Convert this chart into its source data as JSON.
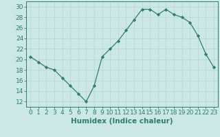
{
  "x": [
    0,
    1,
    2,
    3,
    4,
    5,
    6,
    7,
    8,
    9,
    10,
    11,
    12,
    13,
    14,
    15,
    16,
    17,
    18,
    19,
    20,
    21,
    22,
    23
  ],
  "y": [
    20.5,
    19.5,
    18.5,
    18.0,
    16.5,
    15.0,
    13.5,
    12.0,
    15.0,
    20.5,
    22.0,
    23.5,
    25.5,
    27.5,
    29.5,
    29.5,
    28.5,
    29.5,
    28.5,
    28.0,
    27.0,
    24.5,
    21.0,
    18.5
  ],
  "xlabel": "Humidex (Indice chaleur)",
  "ylim": [
    11,
    31
  ],
  "xlim": [
    -0.5,
    23.5
  ],
  "yticks": [
    12,
    14,
    16,
    18,
    20,
    22,
    24,
    26,
    28,
    30
  ],
  "xticks": [
    0,
    1,
    2,
    3,
    4,
    5,
    6,
    7,
    8,
    9,
    10,
    11,
    12,
    13,
    14,
    15,
    16,
    17,
    18,
    19,
    20,
    21,
    22,
    23
  ],
  "line_color": "#2e7d6e",
  "marker": "D",
  "marker_size": 2.2,
  "bg_color": "#cce8e4",
  "grid_color": "#b8d8d4",
  "axis_color": "#2e7d6e",
  "xlabel_fontsize": 7.5,
  "tick_fontsize": 6.5
}
